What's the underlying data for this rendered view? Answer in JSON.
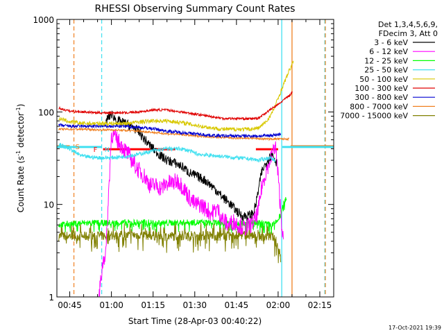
{
  "chart_data": {
    "type": "line",
    "title": "RHESSI Observing Summary Count Rates",
    "xlabel": "Start Time (28-Apr-03 00:40:22)",
    "ylabel": "Count Rate (s",
    "ylabel_sup1": "-1",
    "ylabel_mid": " detector",
    "ylabel_sup2": "-1",
    "ylabel_end": ")",
    "footer": "17-Oct-2021 19:39",
    "y_scale": "log",
    "ylim": [
      1,
      1000
    ],
    "xlim_minutes": [
      40.37,
      140.0
    ],
    "x_tick_labels": [
      "00:45",
      "01:00",
      "01:15",
      "01:30",
      "01:45",
      "02:00",
      "02:15"
    ],
    "x_tick_minutes": [
      45,
      60,
      75,
      90,
      105,
      120,
      135
    ],
    "y_tick_labels": [
      "1",
      "10",
      "100",
      "1000"
    ],
    "y_tick_values": [
      1,
      10,
      100,
      1000
    ],
    "legend_header": [
      "Det 1,3,4,5,6,9,",
      "FDecim 3, Att 0"
    ],
    "legend_position": "right",
    "flags": {
      "S": {
        "label": "S",
        "color": "#f08020",
        "value": 42.5,
        "segments": [
          [
            40.37,
            45.0
          ],
          [
            124.5,
            140.0
          ]
        ],
        "vline_dashed": 46.5,
        "vline_solid": 125.0
      },
      "N": {
        "label": "N",
        "color": "#40e0f0",
        "value": 41.8,
        "segments": [
          [
            40.37,
            56.5
          ],
          [
            121.5,
            140.0
          ]
        ],
        "vline_dashed": 56.5,
        "vline_solid": 121.3
      },
      "F": {
        "label": "F",
        "color": "#ff0000",
        "value": 39.5,
        "segments": [
          [
            57.0,
            83.0
          ],
          [
            112.0,
            120.0
          ]
        ]
      }
    },
    "extra_vlines": [
      {
        "minute": 136.8,
        "color": "#40e0f0",
        "dashed": true
      },
      {
        "minute": 137.0,
        "color": "#f08020",
        "dashed": true
      }
    ],
    "series": [
      {
        "name": "3 - 6 keV",
        "color": "#000000",
        "x": [
          58,
          60,
          62,
          65,
          68,
          70,
          72,
          75,
          78,
          80,
          83,
          86,
          88,
          91,
          94,
          97,
          100,
          103,
          105,
          107,
          109,
          111,
          112,
          114,
          116,
          118,
          119.5
        ],
        "y": [
          80,
          95,
          80,
          75,
          68,
          60,
          50,
          40,
          33,
          30,
          28,
          25,
          22,
          20,
          18,
          15,
          12,
          10,
          8.5,
          7.5,
          7.5,
          8,
          10,
          22,
          30,
          35,
          28
        ]
      },
      {
        "name": "6 - 12 keV",
        "color": "#ff00ff",
        "x": [
          55.5,
          57,
          58,
          60,
          62,
          64,
          66,
          68,
          70,
          72,
          74,
          76,
          78,
          80,
          82,
          84,
          86,
          88,
          90,
          92,
          94,
          96,
          98,
          100,
          102,
          104,
          106,
          108,
          110,
          112,
          113,
          114,
          116,
          118,
          119,
          120,
          121,
          122
        ],
        "y": [
          1,
          2.5,
          3,
          58,
          50,
          42,
          35,
          28,
          23,
          20,
          16,
          16,
          15,
          17,
          17,
          18,
          15,
          12,
          10,
          10,
          9,
          8,
          9,
          7,
          6,
          6.5,
          6,
          5.5,
          6,
          7,
          9,
          15,
          25,
          35,
          45,
          20,
          8,
          3.5
        ]
      },
      {
        "name": "12 - 25 keV",
        "color": "#00ff00",
        "x": [
          41,
          50,
          60,
          70,
          80,
          90,
          100,
          110,
          115,
          118,
          119,
          120,
          121,
          122,
          123
        ],
        "y": [
          6,
          6.3,
          6.3,
          6.4,
          6.3,
          6.4,
          6.3,
          6.3,
          6.2,
          6,
          6.3,
          6.8,
          8,
          10,
          12
        ]
      },
      {
        "name": "25 - 50 keV",
        "color": "#40e0f0",
        "x": [
          41,
          43,
          45,
          48,
          50,
          55,
          60,
          65,
          70,
          75,
          80,
          85,
          88,
          91,
          95,
          100,
          105,
          110,
          113,
          115,
          117,
          119
        ],
        "y": [
          45,
          42,
          40,
          35,
          33,
          32,
          32,
          33,
          35,
          38,
          40,
          40,
          38,
          35,
          34,
          33,
          32,
          31,
          30,
          31,
          32,
          30
        ]
      },
      {
        "name": "50 - 100 keV",
        "color": "#d8c800",
        "x": [
          41,
          45,
          50,
          55,
          60,
          65,
          70,
          75,
          80,
          85,
          90,
          95,
          100,
          105,
          110,
          113,
          116,
          118,
          120,
          122,
          124,
          125.5
        ],
        "y": [
          85,
          78,
          75,
          75,
          75,
          75,
          78,
          80,
          80,
          77,
          72,
          68,
          65,
          65,
          65,
          67,
          80,
          100,
          140,
          200,
          280,
          350
        ]
      },
      {
        "name": "100 - 300 keV",
        "color": "#e00000",
        "x": [
          41,
          45,
          50,
          55,
          60,
          65,
          70,
          75,
          80,
          85,
          90,
          95,
          100,
          105,
          110,
          113,
          116,
          118,
          120,
          122,
          124,
          125.2
        ],
        "y": [
          110,
          102,
          100,
          98,
          98,
          98,
          100,
          105,
          105,
          100,
          95,
          90,
          85,
          85,
          84,
          86,
          100,
          110,
          120,
          135,
          150,
          165
        ]
      },
      {
        "name": "300 - 800 keV",
        "color": "#0000d0",
        "x": [
          41,
          45,
          50,
          55,
          60,
          65,
          70,
          75,
          80,
          85,
          90,
          95,
          100,
          105,
          110,
          115,
          118,
          120,
          121
        ],
        "y": [
          72,
          70,
          70,
          70,
          70,
          70,
          68,
          66,
          62,
          60,
          58,
          56,
          55,
          55,
          55,
          55,
          56,
          57,
          58
        ]
      },
      {
        "name": "800 - 7000 keV",
        "color": "#f08020",
        "x": [
          41,
          45,
          50,
          55,
          60,
          65,
          70,
          75,
          80,
          85,
          90,
          95,
          100,
          105,
          110,
          115,
          120,
          124
        ],
        "y": [
          65,
          65,
          65,
          64,
          64,
          63,
          62,
          60,
          58,
          57,
          55,
          54,
          53,
          52,
          52,
          51,
          51,
          51
        ]
      },
      {
        "name": "7000 - 15000 keV",
        "color": "#808000",
        "x": [
          41,
          45,
          50,
          55,
          60,
          65,
          70,
          75,
          80,
          85,
          90,
          95,
          100,
          105,
          110,
          115,
          118,
          120,
          121
        ],
        "y": [
          4.5,
          4.6,
          4.5,
          4.6,
          4.5,
          4.6,
          4.7,
          4.6,
          4.5,
          4.6,
          4.5,
          4.6,
          4.5,
          4.7,
          4.6,
          4.5,
          4.5,
          3.5,
          2.5
        ]
      }
    ]
  }
}
